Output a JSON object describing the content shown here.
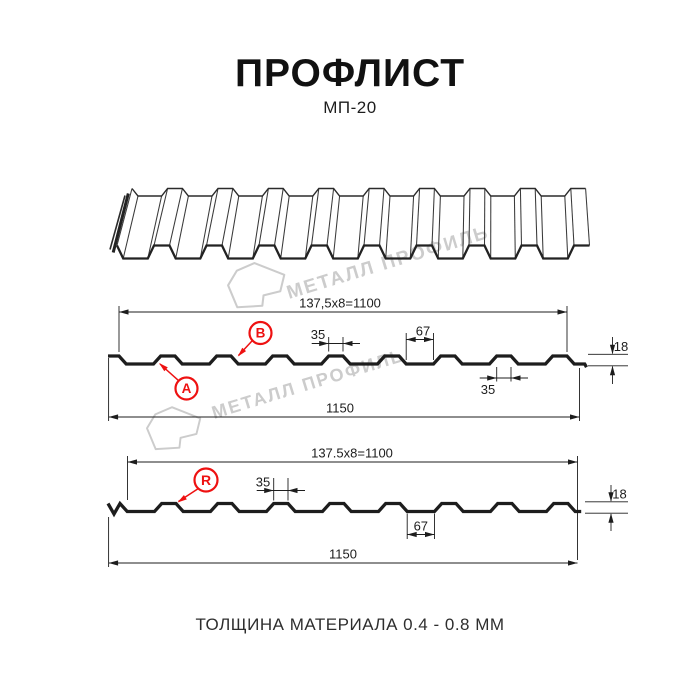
{
  "header": {
    "title": "ПРОФЛИСТ",
    "subtitle": "МП-20"
  },
  "watermark": {
    "brand": "МЕТАЛЛ ПРОФИЛЬ"
  },
  "profile_top": {
    "coverage_width": "137,5x8=1100",
    "full_width": "1150",
    "rib_top_width": "35",
    "groove_width": "67",
    "profile_height": "18",
    "rib_bottom_width": "35",
    "point_labels": {
      "a": "A",
      "b": "B"
    }
  },
  "profile_bottom": {
    "coverage_width": "137.5x8=1100",
    "full_width": "1150",
    "rib_top_width": "35",
    "groove_width": "67",
    "profile_height": "18",
    "point_labels": {
      "r": "R"
    }
  },
  "footer": {
    "note": "ТОЛЩИНА МАТЕРИАЛА 0.4 - 0.8 ММ"
  },
  "colors": {
    "accent_red": "#ee1111",
    "line": "#1d1d1d",
    "watermark": "#cccccc"
  }
}
